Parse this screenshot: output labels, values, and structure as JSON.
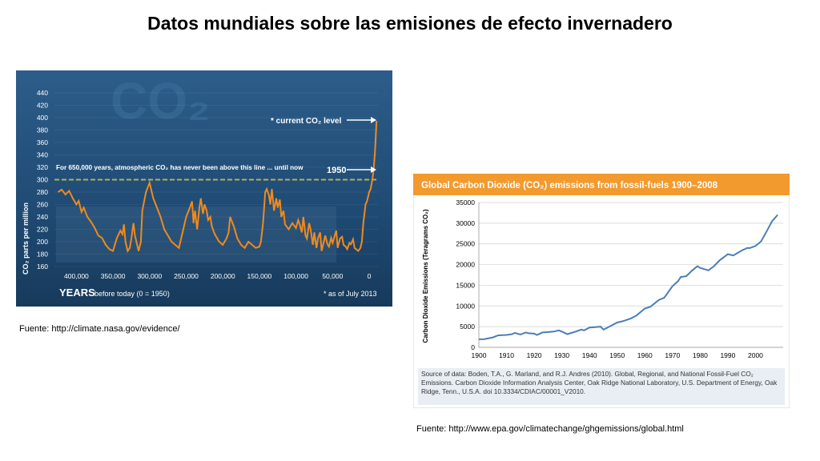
{
  "slide": {
    "title": "Datos mundiales sobre las emisiones de efecto invernadero",
    "caption_left": "Fuente: http://climate.nasa.gov/evidence/",
    "caption_right": "Fuente: http://www.epa.gov/climatechange/ghgemissions/global.html"
  },
  "chart_data": [
    {
      "type": "line",
      "title": "CO₂",
      "ylabel": "CO₂ parts per million",
      "xlabel_main": "YEARS",
      "xlabel_sub": "before today (0 = 1950)",
      "footnote": "* as of July 2013",
      "annotation_current": "* current CO₂ level",
      "annotation_1950": "1950",
      "annotation_line": "For 650,000 years, atmospheric CO₂ has never been above this line ... until now",
      "threshold": 300,
      "ylim": [
        160,
        440
      ],
      "yticks": [
        160,
        180,
        200,
        220,
        240,
        260,
        280,
        300,
        320,
        340,
        360,
        380,
        400,
        420,
        440
      ],
      "xlim": [
        430000,
        -12000
      ],
      "xtick_labels": [
        "400,000",
        "350,000",
        "300,000",
        "250,000",
        "200,000",
        "150,000",
        "100,000",
        "50,000",
        "0"
      ],
      "xtick_values": [
        400000,
        350000,
        300000,
        250000,
        200000,
        150000,
        100000,
        50000,
        0
      ],
      "colors": {
        "background": "#1f4a73",
        "line": "#f08a1c",
        "threshold": "#b0b35a",
        "text": "#ffffff"
      },
      "series": [
        {
          "x": [
            425000,
            420000,
            415000,
            410000,
            405000,
            400000,
            397000,
            393000,
            390000,
            385000,
            380000,
            375000,
            370000,
            365000,
            360000,
            355000,
            350000,
            345000,
            340000,
            337000,
            335000,
            333000,
            330000,
            327000,
            325000,
            322000,
            320000,
            317000,
            315000,
            312000,
            310000,
            305000,
            300000,
            295000,
            290000,
            285000,
            280000,
            275000,
            270000,
            265000,
            260000,
            255000,
            250000,
            245000,
            242000,
            240000,
            238000,
            235000,
            232000,
            230000,
            227000,
            225000,
            222000,
            220000,
            217000,
            215000,
            212000,
            210000,
            205000,
            200000,
            195000,
            192000,
            190000,
            185000,
            180000,
            175000,
            170000,
            165000,
            160000,
            155000,
            150000,
            148000,
            145000,
            142000,
            140000,
            137000,
            135000,
            133000,
            130000,
            127000,
            125000,
            122000,
            120000,
            117000,
            115000,
            110000,
            105000,
            100000,
            97000,
            95000,
            92000,
            90000,
            87000,
            85000,
            82000,
            80000,
            77000,
            75000,
            72000,
            70000,
            67000,
            65000,
            62000,
            60000,
            57000,
            55000,
            52000,
            50000,
            47000,
            45000,
            43000,
            40000,
            37000,
            35000,
            32000,
            30000,
            27000,
            25000,
            22000,
            20000,
            18000,
            15000,
            12000,
            10000,
            8000,
            5000,
            3000,
            1000,
            0,
            -2000,
            -4000,
            -6000,
            -8000,
            -10000
          ],
          "y": [
            280,
            284,
            276,
            282,
            270,
            260,
            266,
            248,
            255,
            240,
            232,
            222,
            210,
            206,
            195,
            188,
            185,
            205,
            218,
            212,
            228,
            200,
            185,
            190,
            205,
            230,
            210,
            195,
            185,
            200,
            250,
            280,
            295,
            270,
            255,
            240,
            220,
            210,
            200,
            195,
            190,
            215,
            240,
            255,
            265,
            230,
            250,
            220,
            255,
            270,
            245,
            260,
            250,
            235,
            240,
            225,
            215,
            210,
            200,
            195,
            205,
            215,
            240,
            225,
            205,
            195,
            190,
            200,
            195,
            190,
            192,
            200,
            230,
            280,
            285,
            275,
            260,
            285,
            250,
            270,
            255,
            268,
            240,
            250,
            228,
            220,
            230,
            222,
            235,
            228,
            215,
            240,
            210,
            205,
            230,
            220,
            195,
            215,
            190,
            205,
            215,
            185,
            200,
            210,
            196,
            192,
            206,
            198,
            210,
            218,
            190,
            205,
            208,
            195,
            192,
            188,
            198,
            196,
            204,
            190,
            188,
            185,
            190,
            200,
            230,
            260,
            265,
            275,
            280,
            285,
            298,
            315,
            345,
            395
          ]
        }
      ]
    },
    {
      "type": "line",
      "title": "Global Carbon Dioxide (CO₂) emissions from fossil-fuels 1900–2008",
      "ylabel": "Carbon Dioxide Emissions (Teragrams CO₂)",
      "xlabel": "",
      "ylim": [
        0,
        35000
      ],
      "yticks": [
        0,
        5000,
        10000,
        15000,
        20000,
        25000,
        30000,
        35000
      ],
      "xlim": [
        1900,
        2010
      ],
      "xticks": [
        1900,
        1910,
        1920,
        1930,
        1940,
        1950,
        1960,
        1970,
        1980,
        1990,
        2000
      ],
      "source_text": "Source of data: Boden, T.A., G. Marland, and R.J. Andres (2010). Global, Regional, and National Fossil-Fuel CO₂ Emissions. Carbon Dioxide Information Analysis Center, Oak Ridge National Laboratory, U.S. Department of Energy, Oak Ridge, Tenn., U.S.A. doi 10.3334/CDIAC/00001_V2010.",
      "colors": {
        "header": "#f29a2e",
        "line": "#4a7fb5",
        "source_bg": "#e8eef3"
      },
      "series": [
        {
          "x": [
            1900,
            1902,
            1905,
            1907,
            1910,
            1912,
            1913,
            1915,
            1917,
            1918,
            1920,
            1921,
            1923,
            1925,
            1927,
            1929,
            1930,
            1932,
            1935,
            1937,
            1938,
            1940,
            1942,
            1944,
            1945,
            1946,
            1948,
            1950,
            1952,
            1955,
            1957,
            1960,
            1962,
            1965,
            1967,
            1970,
            1972,
            1973,
            1975,
            1977,
            1979,
            1980,
            1982,
            1983,
            1985,
            1987,
            1990,
            1992,
            1995,
            1997,
            1998,
            2000,
            2002,
            2004,
            2006,
            2008
          ],
          "y": [
            1950,
            2000,
            2400,
            2900,
            3000,
            3200,
            3500,
            3100,
            3600,
            3400,
            3300,
            3000,
            3600,
            3700,
            3800,
            4100,
            3800,
            3200,
            3800,
            4300,
            4100,
            4800,
            4900,
            5000,
            4300,
            4600,
            5300,
            6000,
            6300,
            7000,
            7700,
            9400,
            9800,
            11400,
            12000,
            14800,
            16000,
            17000,
            17200,
            18500,
            19600,
            19200,
            18800,
            18600,
            19600,
            21000,
            22500,
            22200,
            23400,
            24000,
            24000,
            24500,
            25600,
            28000,
            30500,
            32000
          ]
        }
      ]
    }
  ]
}
